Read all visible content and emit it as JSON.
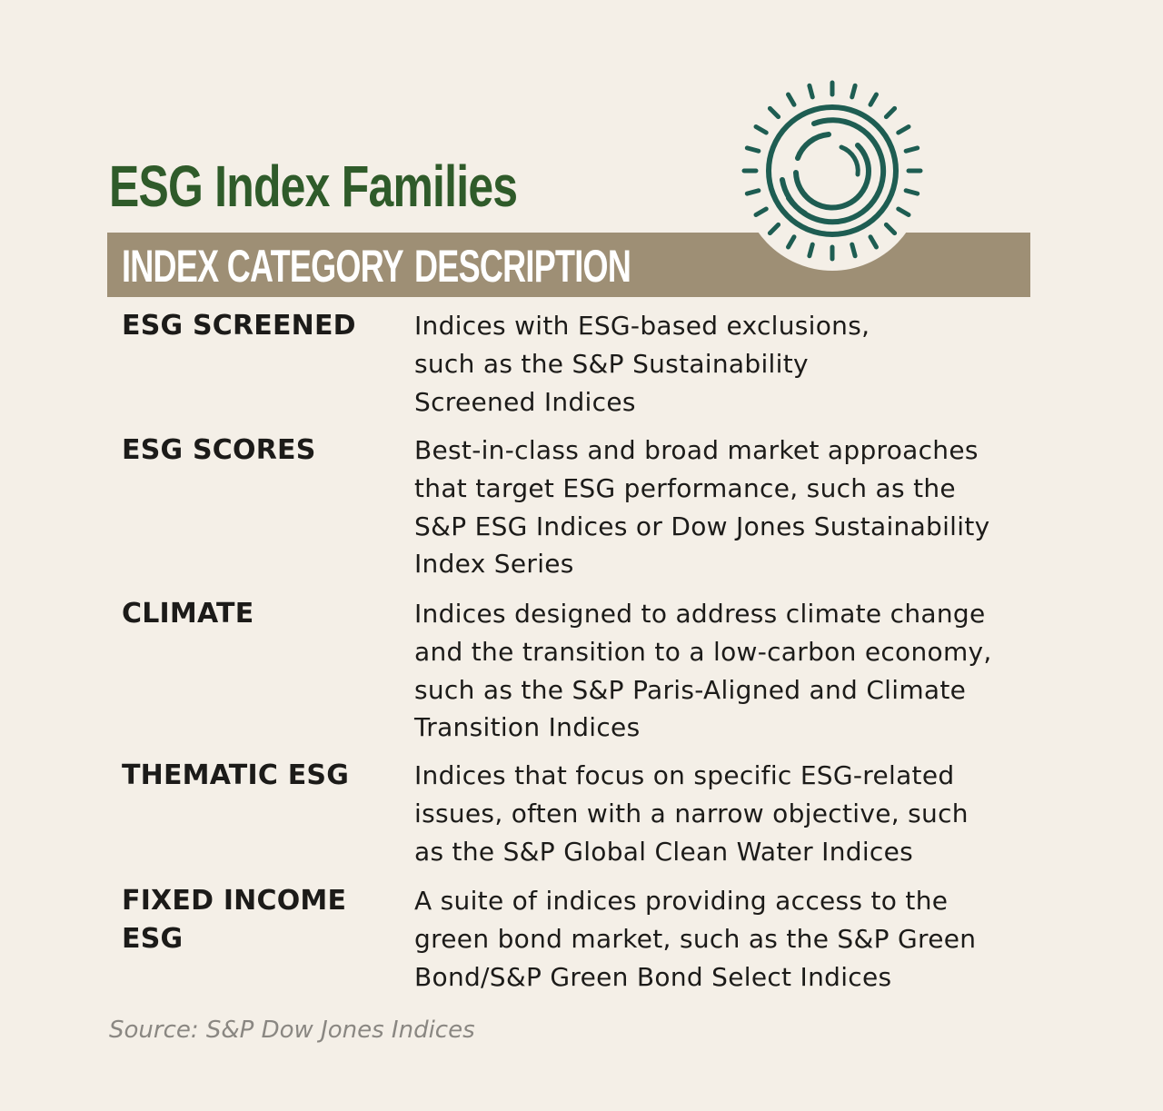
{
  "title": "ESG Index Families",
  "header": {
    "category": "INDEX CATEGORY",
    "description": "DESCRIPTION"
  },
  "rows": [
    {
      "category": "ESG SCREENED",
      "description": "Indices with ESG-based exclusions,\nsuch as the S&P Sustainability\nScreened Indices"
    },
    {
      "category": "ESG SCORES",
      "description": "Best-in-class and broad market approaches\nthat target ESG performance, such as the\nS&P ESG Indices or Dow Jones Sustainability\nIndex Series"
    },
    {
      "category": "CLIMATE",
      "description": "Indices designed to address climate change\nand the transition to a low-carbon economy,\nsuch as the S&P Paris-Aligned and Climate\nTransition Indices"
    },
    {
      "category": "THEMATIC ESG",
      "description": "Indices that focus on specific ESG-related\nissues, often with a narrow objective, such\nas the S&P Global Clean Water Indices"
    },
    {
      "category": "FIXED INCOME\nESG",
      "description": "A suite of indices providing access to the\ngreen bond market, such as the S&P Green\nBond/S&P Green Bond Select Indices"
    }
  ],
  "source": "Source: S&P Dow Jones Indices",
  "colors": {
    "background": "#f4efe7",
    "title": "#2f5b2a",
    "header_bar": "#9e8f75",
    "emblem": "#1e5d52",
    "source": "#8a8782"
  },
  "emblem_icon": "sun-spiral-icon"
}
